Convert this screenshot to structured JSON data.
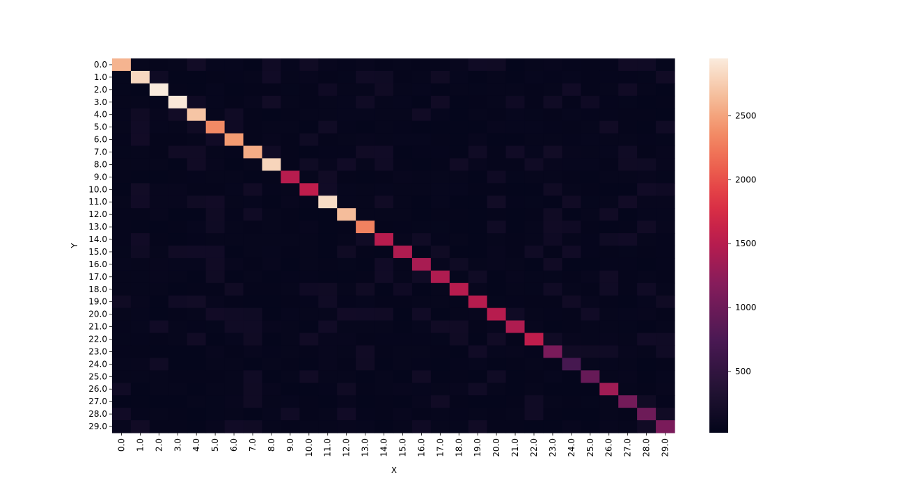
{
  "chart_data": {
    "type": "heatmap",
    "xlabel": "X",
    "ylabel": "Y",
    "x_categories": [
      "0.0",
      "1.0",
      "2.0",
      "3.0",
      "4.0",
      "5.0",
      "6.0",
      "7.0",
      "8.0",
      "9.0",
      "10.0",
      "11.0",
      "12.0",
      "13.0",
      "14.0",
      "15.0",
      "16.0",
      "17.0",
      "18.0",
      "19.0",
      "20.0",
      "21.0",
      "22.0",
      "23.0",
      "24.0",
      "25.0",
      "26.0",
      "27.0",
      "28.0",
      "29.0"
    ],
    "y_categories": [
      "0.0",
      "1.0",
      "2.0",
      "3.0",
      "4.0",
      "5.0",
      "6.0",
      "7.0",
      "8.0",
      "9.0",
      "10.0",
      "11.0",
      "12.0",
      "13.0",
      "14.0",
      "15.0",
      "16.0",
      "17.0",
      "18.0",
      "19.0",
      "20.0",
      "21.0",
      "22.0",
      "23.0",
      "24.0",
      "25.0",
      "26.0",
      "27.0",
      "28.0",
      "29.0"
    ],
    "diagonal_values": [
      2600,
      2820,
      2950,
      2930,
      2700,
      2350,
      2450,
      2550,
      2800,
      1500,
      1550,
      2850,
      2650,
      2300,
      1500,
      1450,
      1400,
      1450,
      1500,
      1500,
      1500,
      1450,
      1550,
      1100,
      700,
      950,
      1350,
      1050,
      1000,
      1100
    ],
    "off_diagonal_base": 40,
    "off_diagonal_noise_max": 140,
    "colorbar": {
      "range": [
        20,
        2950
      ],
      "ticks": [
        500,
        1000,
        1500,
        2000,
        2500
      ],
      "colormap": "rocket"
    }
  }
}
